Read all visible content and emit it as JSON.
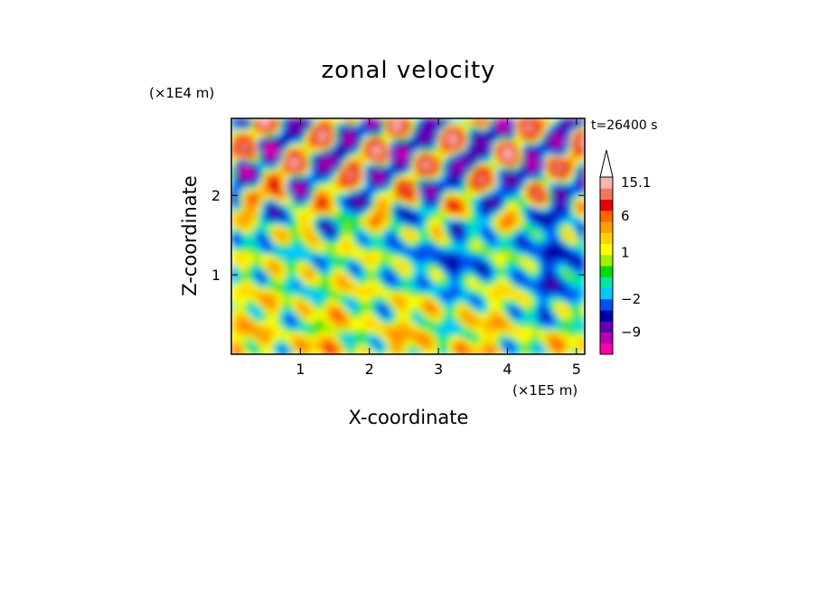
{
  "chart_data": {
    "type": "heatmap",
    "title": "zonal velocity",
    "xlabel": "X-coordinate",
    "ylabel": "Z-coordinate",
    "x_unit": "(×1E5 m)",
    "y_unit": "(×1E4 m)",
    "time_label": "t=26400 s",
    "xlim": [
      0,
      5.12
    ],
    "ylim": [
      0,
      2.97
    ],
    "x_ticks": [
      {
        "value": 1,
        "label": "1"
      },
      {
        "value": 2,
        "label": "2"
      },
      {
        "value": 3,
        "label": "3"
      },
      {
        "value": 4,
        "label": "4"
      },
      {
        "value": 5,
        "label": "5"
      }
    ],
    "y_ticks": [
      {
        "value": 1,
        "label": "1"
      },
      {
        "value": 2,
        "label": "2"
      }
    ],
    "colorbar": {
      "levels_low_to_high": [
        {
          "color": "#ff00a8"
        },
        {
          "color": "#b400b4"
        },
        {
          "color": "#6400b4"
        },
        {
          "color": "#0000aa"
        },
        {
          "color": "#0050f0"
        },
        {
          "color": "#00c8ff"
        },
        {
          "color": "#00e6a0"
        },
        {
          "color": "#00dc00"
        },
        {
          "color": "#a0f000"
        },
        {
          "color": "#ffff00"
        },
        {
          "color": "#ffd200"
        },
        {
          "color": "#ffa000"
        },
        {
          "color": "#ff6400"
        },
        {
          "color": "#e60000"
        },
        {
          "color": "#f0785a"
        },
        {
          "color": "#fab4b4"
        }
      ],
      "labels": [
        {
          "text": "-9",
          "level_index": 1.5
        },
        {
          "text": "-2",
          "level_index": 4.5
        },
        {
          "text": "1",
          "level_index": 8.7
        },
        {
          "text": "6",
          "level_index": 12.0
        },
        {
          "text": "15.1",
          "level_index": 15.0
        }
      ],
      "extend": "max"
    },
    "field_summary": [
      {
        "region": "upper band z 1.5-3.0",
        "pattern": "alternating red/orange and dark-blue tilted waves, values about -9 to 10"
      },
      {
        "region": "middle z 0.8-1.5",
        "pattern": "mostly yellow/green with cyan patch near x 3.3, values about -2 to 3"
      },
      {
        "region": "lower band z 0-0.8",
        "pattern": "yellow with orange patches and green/cyan streaks, values about 0 to 5"
      }
    ]
  }
}
